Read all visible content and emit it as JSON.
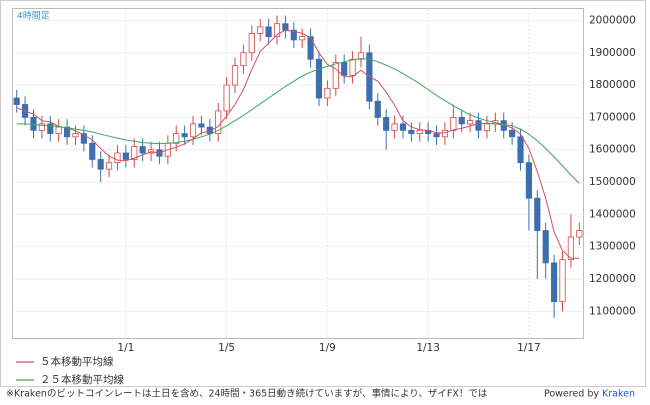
{
  "chart_data": {
    "type": "candlestick",
    "title": "4時間足",
    "categories": [
      null,
      null,
      null,
      null,
      null,
      null,
      null,
      null,
      null,
      null,
      null,
      null,
      null,
      "1/1",
      null,
      null,
      null,
      null,
      null,
      null,
      null,
      null,
      null,
      null,
      null,
      "1/5",
      null,
      null,
      null,
      null,
      null,
      null,
      null,
      null,
      null,
      null,
      null,
      "1/9",
      null,
      null,
      null,
      null,
      null,
      null,
      null,
      null,
      null,
      null,
      null,
      "1/13",
      null,
      null,
      null,
      null,
      null,
      null,
      null,
      null,
      null,
      null,
      null,
      "1/17",
      null,
      null,
      null,
      null,
      null,
      null
    ],
    "open": [
      1760000,
      1740000,
      1700000,
      1660000,
      1680000,
      1650000,
      1670000,
      1640000,
      1650000,
      1620000,
      1570000,
      1540000,
      1560000,
      1590000,
      1570000,
      1610000,
      1590000,
      1600000,
      1580000,
      1620000,
      1650000,
      1640000,
      1680000,
      1670000,
      1650000,
      1720000,
      1800000,
      1860000,
      1900000,
      1960000,
      1980000,
      1950000,
      1990000,
      1970000,
      1940000,
      1950000,
      1880000,
      1760000,
      1790000,
      1870000,
      1830000,
      1880000,
      1900000,
      1750000,
      1700000,
      1660000,
      1680000,
      1660000,
      1650000,
      1660000,
      1650000,
      1640000,
      1660000,
      1700000,
      1680000,
      1690000,
      1660000,
      1680000,
      1690000,
      1660000,
      1640000,
      1560000,
      1450000,
      1350000,
      1250000,
      1130000,
      1260000,
      1330000
    ],
    "high": [
      1785000,
      1765000,
      1725000,
      1705000,
      1705000,
      1695000,
      1695000,
      1675000,
      1675000,
      1645000,
      1595000,
      1585000,
      1615000,
      1615000,
      1635000,
      1635000,
      1625000,
      1625000,
      1645000,
      1675000,
      1675000,
      1705000,
      1705000,
      1695000,
      1745000,
      1825000,
      1885000,
      1925000,
      1985000,
      2005000,
      2005000,
      2015000,
      2015000,
      1995000,
      1975000,
      1975000,
      1905000,
      1815000,
      1895000,
      1895000,
      1905000,
      1950000,
      1925000,
      1775000,
      1725000,
      1705000,
      1705000,
      1685000,
      1685000,
      1685000,
      1675000,
      1685000,
      1740000,
      1725000,
      1715000,
      1715000,
      1705000,
      1715000,
      1715000,
      1685000,
      1665000,
      1585000,
      1475000,
      1375000,
      1275000,
      1285000,
      1400000,
      1375000
    ],
    "low": [
      1715000,
      1675000,
      1635000,
      1635000,
      1625000,
      1625000,
      1615000,
      1615000,
      1595000,
      1545000,
      1500000,
      1515000,
      1535000,
      1545000,
      1545000,
      1565000,
      1565000,
      1555000,
      1555000,
      1595000,
      1615000,
      1615000,
      1645000,
      1625000,
      1625000,
      1695000,
      1775000,
      1835000,
      1875000,
      1935000,
      1925000,
      1925000,
      1945000,
      1915000,
      1915000,
      1855000,
      1735000,
      1735000,
      1765000,
      1805000,
      1805000,
      1855000,
      1725000,
      1675000,
      1600000,
      1635000,
      1635000,
      1625000,
      1625000,
      1625000,
      1615000,
      1615000,
      1635000,
      1655000,
      1655000,
      1635000,
      1635000,
      1655000,
      1635000,
      1615000,
      1535000,
      1350000,
      1200000,
      1200000,
      1080000,
      1100000,
      1235000,
      1305000
    ],
    "close": [
      1740000,
      1700000,
      1660000,
      1680000,
      1650000,
      1670000,
      1640000,
      1650000,
      1620000,
      1570000,
      1540000,
      1560000,
      1590000,
      1570000,
      1610000,
      1590000,
      1600000,
      1580000,
      1620000,
      1650000,
      1640000,
      1680000,
      1670000,
      1650000,
      1720000,
      1800000,
      1860000,
      1900000,
      1960000,
      1980000,
      1950000,
      1990000,
      1970000,
      1940000,
      1950000,
      1880000,
      1760000,
      1790000,
      1870000,
      1830000,
      1880000,
      1900000,
      1750000,
      1700000,
      1660000,
      1680000,
      1660000,
      1650000,
      1660000,
      1650000,
      1640000,
      1660000,
      1700000,
      1680000,
      1690000,
      1660000,
      1680000,
      1690000,
      1660000,
      1640000,
      1560000,
      1450000,
      1350000,
      1250000,
      1130000,
      1260000,
      1330000,
      1350000
    ],
    "up_color": "#d04a4a",
    "down_color": "#3d6fae",
    "series": [
      {
        "name": "５本移動平均線",
        "color": "#d0506a",
        "values": [
          1730000,
          1720000,
          1710000,
          1690000,
          1686000,
          1672000,
          1668000,
          1658000,
          1646000,
          1630000,
          1604000,
          1580000,
          1568000,
          1566000,
          1574000,
          1584000,
          1594000,
          1590000,
          1600000,
          1608000,
          1618000,
          1634000,
          1652000,
          1658000,
          1672000,
          1704000,
          1740000,
          1786000,
          1848000,
          1904000,
          1930000,
          1956000,
          1970000,
          1966000,
          1960000,
          1946000,
          1900000,
          1864000,
          1850000,
          1826000,
          1826000,
          1846000,
          1826000,
          1812000,
          1778000,
          1738000,
          1690000,
          1670000,
          1662000,
          1660000,
          1652000,
          1652000,
          1662000,
          1666000,
          1674000,
          1680000,
          1682000,
          1680000,
          1676000,
          1668000,
          1648000,
          1604000,
          1532000,
          1450000,
          1346000,
          1288000,
          1264000,
          1264000
        ]
      },
      {
        "name": "２５本移動平均線",
        "color": "#3aa85a",
        "values": [
          1680000,
          1680000,
          1678000,
          1676000,
          1674000,
          1672000,
          1668000,
          1664000,
          1660000,
          1655000,
          1648000,
          1642000,
          1636000,
          1630000,
          1626000,
          1622000,
          1620000,
          1619000,
          1620000,
          1622000,
          1626000,
          1632000,
          1640000,
          1648000,
          1660000,
          1674000,
          1690000,
          1706000,
          1724000,
          1742000,
          1760000,
          1778000,
          1796000,
          1812000,
          1828000,
          1840000,
          1850000,
          1858000,
          1866000,
          1872000,
          1878000,
          1882000,
          1880000,
          1872000,
          1862000,
          1850000,
          1836000,
          1820000,
          1804000,
          1786000,
          1768000,
          1752000,
          1736000,
          1722000,
          1708000,
          1698000,
          1690000,
          1684000,
          1678000,
          1674000,
          1664000,
          1648000,
          1628000,
          1604000,
          1578000,
          1550000,
          1522000,
          1496000
        ]
      }
    ],
    "ylim": [
      1016000,
      2037000
    ],
    "yticks": [
      1100000,
      1200000,
      1300000,
      1400000,
      1500000,
      1600000,
      1700000,
      1800000,
      1900000,
      2000000
    ],
    "grid": true
  },
  "footer": {
    "note": "※Krakenのビットコインレートは土日を含め、24時間・365日動き続けていますが、事情により、ザイFX！では",
    "powered_by": "Powered by",
    "brand": "Kraken"
  }
}
